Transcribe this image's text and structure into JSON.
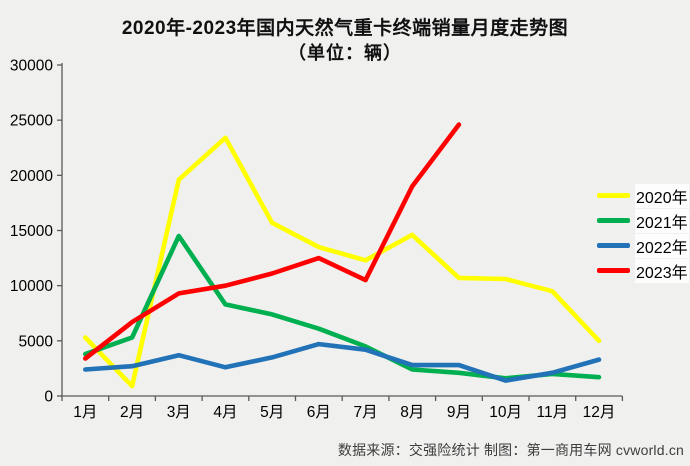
{
  "chart_data": {
    "type": "line",
    "title": "2020年-2023年国内天然气重卡终端销量月度走势图",
    "subtitle": "（单位：辆）",
    "categories": [
      "1月",
      "2月",
      "3月",
      "4月",
      "5月",
      "6月",
      "7月",
      "8月",
      "9月",
      "10月",
      "11月",
      "12月"
    ],
    "series": [
      {
        "name": "2020年",
        "color": "#FFFF00",
        "values": [
          5300,
          900,
          19600,
          23400,
          15700,
          13500,
          12300,
          14600,
          10700,
          10600,
          9500,
          5000
        ]
      },
      {
        "name": "2021年",
        "color": "#00B050",
        "values": [
          3800,
          5300,
          14500,
          8300,
          7400,
          6100,
          4500,
          2400,
          2100,
          1600,
          2000,
          1700
        ]
      },
      {
        "name": "2022年",
        "color": "#2272B8",
        "values": [
          2400,
          2700,
          3700,
          2600,
          3500,
          4700,
          4200,
          2800,
          2800,
          1400,
          2100,
          3300
        ]
      },
      {
        "name": "2023年",
        "color": "#FF0000",
        "values": [
          3400,
          6700,
          9300,
          10000,
          11100,
          12500,
          10500,
          19000,
          24600
        ]
      }
    ],
    "ylim": [
      0,
      30000
    ],
    "ytick_step": 5000,
    "ytick_labels": [
      "0",
      "5000",
      "10000",
      "15000",
      "20000",
      "25000",
      "30000"
    ],
    "grid": false,
    "legend_position": "right",
    "axis_color": "#595959"
  },
  "footer": {
    "source": "数据来源：交强险统计  制图：第一商用车网 cvworld.cn"
  }
}
